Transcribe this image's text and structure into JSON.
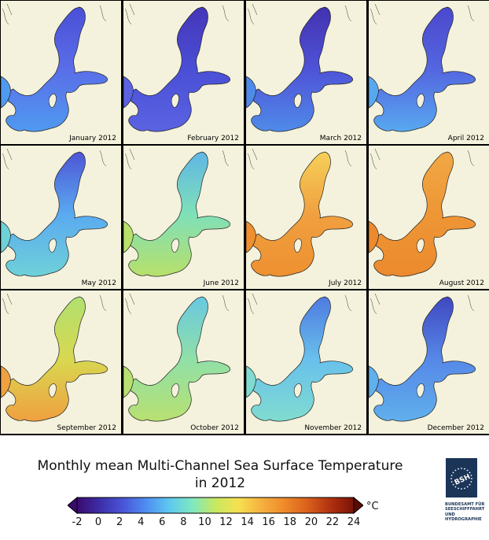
{
  "panels": [
    {
      "label": "January 2012",
      "color": "#5a6ee8",
      "north": "#4a4fd6",
      "south": "#4f9af0"
    },
    {
      "label": "February 2012",
      "color": "#4a4fd6",
      "north": "#4536b8",
      "south": "#5b63e2"
    },
    {
      "label": "March 2012",
      "color": "#4f53d8",
      "north": "#4232b0",
      "south": "#4f8be8"
    },
    {
      "label": "April 2012",
      "color": "#5466e0",
      "north": "#4b48cc",
      "south": "#58a8f0"
    },
    {
      "label": "May 2012",
      "color": "#5aaaf0",
      "north": "#4d55d6",
      "south": "#6ed1d8"
    },
    {
      "label": "June 2012",
      "color": "#7fe0b8",
      "north": "#5fb6e4",
      "south": "#b8e06a"
    },
    {
      "label": "July 2012",
      "color": "#f0a040",
      "north": "#f5d058",
      "south": "#ee9030"
    },
    {
      "label": "August 2012",
      "color": "#ee9635",
      "north": "#f1a845",
      "south": "#ec8a2e"
    },
    {
      "label": "September 2012",
      "color": "#d8d850",
      "north": "#b0e070",
      "south": "#f0a040"
    },
    {
      "label": "October 2012",
      "color": "#90e0a8",
      "north": "#68c8e0",
      "south": "#b8e070"
    },
    {
      "label": "November 2012",
      "color": "#68c0ec",
      "north": "#4f7ae0",
      "south": "#80dcd0"
    },
    {
      "label": "December 2012",
      "color": "#5688e8",
      "north": "#4048c0",
      "south": "#60b0ec"
    }
  ],
  "title_line1": "Monthly mean Multi-Channel Sea Surface Temperature",
  "title_line2": "in 2012",
  "colorbar": {
    "ticks": [
      "-2",
      "0",
      "2",
      "4",
      "6",
      "8",
      "10",
      "12",
      "14",
      "16",
      "18",
      "20",
      "22",
      "24"
    ],
    "unit": "°C",
    "colors": [
      "#3a0a6e",
      "#3d2fa8",
      "#4a55d8",
      "#4f8ef0",
      "#5ec8f0",
      "#7fe8c0",
      "#c8e860",
      "#f6e050",
      "#f5b040",
      "#ee8a2a",
      "#d9601c",
      "#b03010",
      "#7a1206"
    ]
  },
  "logo": {
    "mark": "BSH",
    "text_lines": [
      "BUNDESAMT FÜR",
      "SEESCHIFFFAHRT",
      "UND",
      "HYDROGRAPHIE"
    ]
  }
}
